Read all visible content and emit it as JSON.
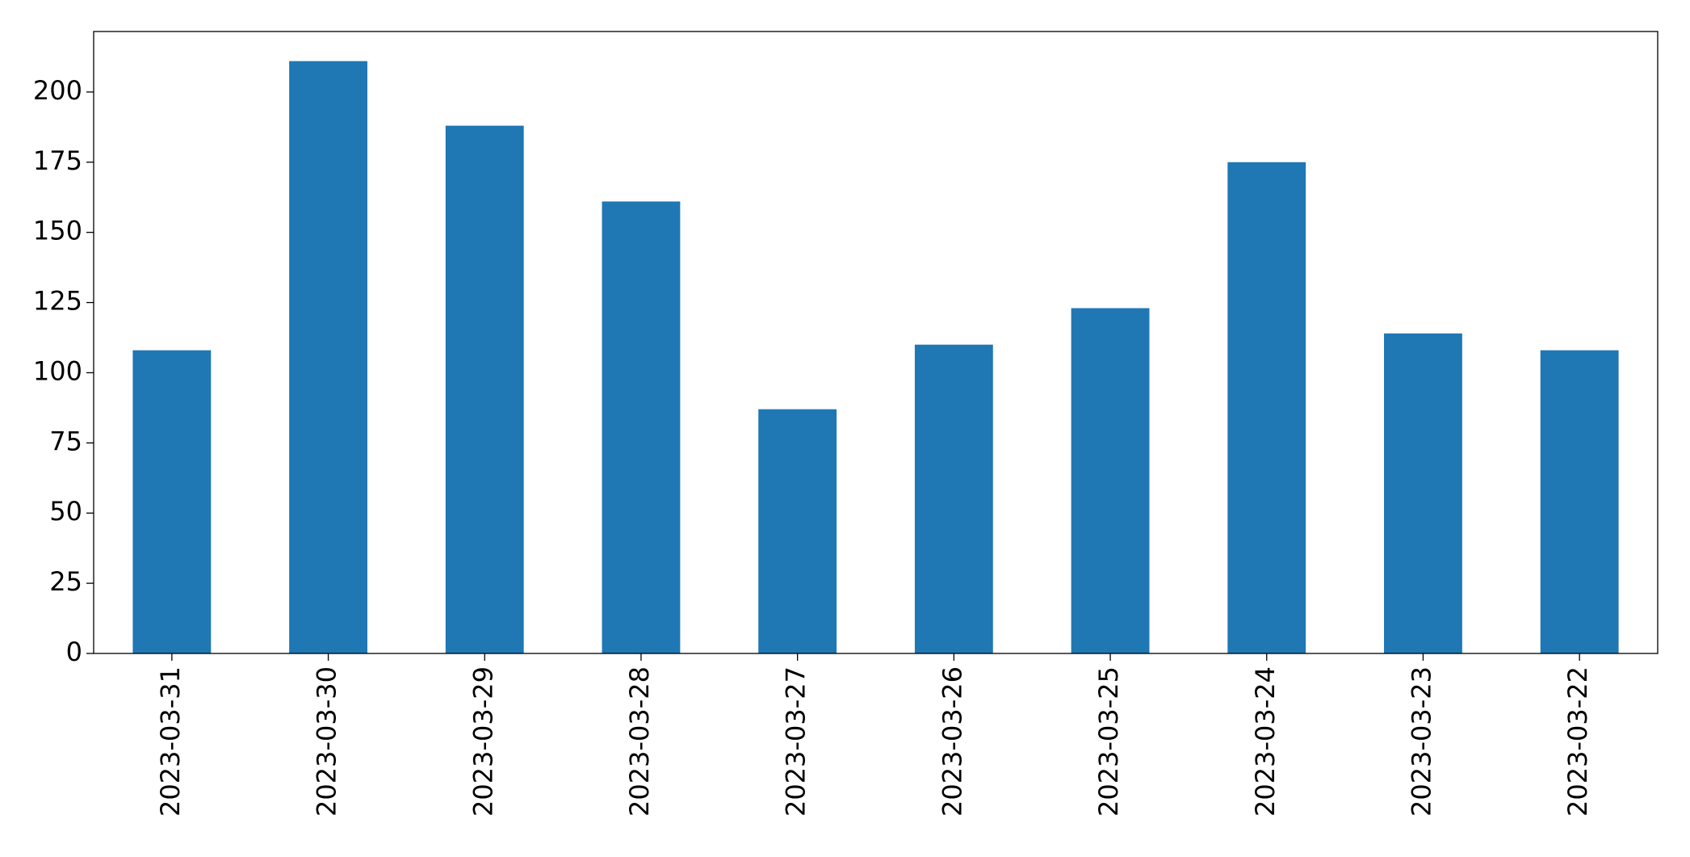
{
  "chart_data": {
    "type": "bar",
    "categories": [
      "2023-03-31",
      "2023-03-30",
      "2023-03-29",
      "2023-03-28",
      "2023-03-27",
      "2023-03-26",
      "2023-03-25",
      "2023-03-24",
      "2023-03-23",
      "2023-03-22"
    ],
    "values": [
      108,
      211,
      188,
      161,
      87,
      110,
      123,
      175,
      114,
      108
    ],
    "color": "#1f77b4",
    "ylim": [
      0,
      221.55
    ],
    "yticks": [
      0,
      25,
      50,
      75,
      100,
      125,
      150,
      175,
      200
    ],
    "grid": false
  }
}
